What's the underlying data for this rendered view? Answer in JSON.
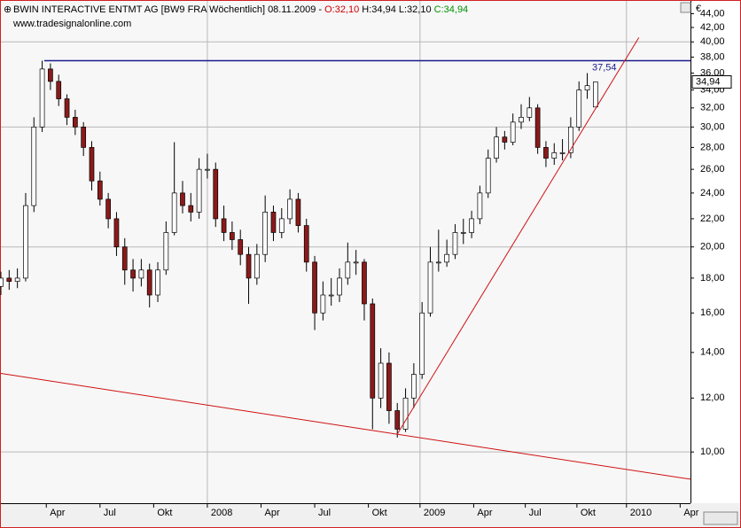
{
  "chart_data": {
    "type": "candlestick",
    "title_parts": [
      {
        "text": "BWIN INTERACTIVE ENTMT AG [BW9 FRA  Wöchentlich] 08.11.2009 - ",
        "color": "#000000"
      },
      {
        "text": "O:32,10",
        "color": "#d00000"
      },
      {
        "text": " H:34,94",
        "color": "#000000"
      },
      {
        "text": " L:32,10",
        "color": "#000000"
      },
      {
        "text": " C:34,94",
        "color": "#009000"
      }
    ],
    "subtitle": "www.tradesignalonline.com",
    "currency": "€",
    "x": [
      0,
      2,
      4,
      6,
      8,
      10,
      12,
      14,
      16,
      18,
      20,
      22,
      24,
      26,
      28,
      30,
      32,
      34,
      36,
      38,
      40,
      42,
      44,
      46,
      48,
      50,
      52,
      54,
      56,
      58,
      60,
      62,
      64,
      66,
      68,
      70,
      72,
      74,
      76,
      78,
      80,
      82,
      84,
      86,
      88,
      90,
      92,
      94,
      96,
      98,
      100,
      102,
      104,
      106,
      108,
      110,
      112,
      114,
      116,
      118,
      120,
      122,
      124,
      126,
      128,
      130,
      132,
      134,
      136,
      138,
      140,
      142,
      144
    ],
    "open": [
      17.5,
      18,
      17.8,
      18,
      23,
      30,
      36.5,
      35,
      33,
      31,
      30,
      28,
      25,
      23.5,
      22,
      20,
      18.5,
      18,
      18.5,
      17,
      18.5,
      21,
      24,
      23,
      22.5,
      26,
      26,
      22,
      21,
      20.5,
      19.5,
      18,
      19.5,
      22.5,
      21,
      22,
      23.5,
      21.5,
      19,
      16,
      17,
      17,
      18,
      19,
      19,
      16.5,
      12,
      13.5,
      11.5,
      10.8,
      12,
      13,
      16,
      19,
      19,
      19.5,
      21,
      21,
      22,
      24,
      27,
      29,
      28.5,
      30.5,
      31,
      32,
      28,
      27,
      27.5,
      27.5,
      30,
      34,
      32.1
    ],
    "high": [
      18.4,
      18.5,
      18.6,
      24,
      31,
      37.54,
      37.2,
      35.8,
      33.5,
      31.8,
      30.5,
      28.6,
      25.8,
      24,
      22.5,
      20.6,
      19.2,
      19.2,
      18.9,
      19,
      21.8,
      28.5,
      25,
      24,
      27,
      27.4,
      26.6,
      23,
      21.8,
      21.2,
      20,
      20.2,
      23.8,
      23,
      22.8,
      24.3,
      24,
      22,
      19.4,
      17.8,
      18,
      18.6,
      20.3,
      19.8,
      19.2,
      16.8,
      14.2,
      14,
      11.8,
      12.4,
      13.5,
      16.6,
      20,
      21.2,
      20.5,
      21.6,
      22,
      22.6,
      24.6,
      27.8,
      30,
      29.6,
      31.4,
      32.4,
      33.2,
      32.4,
      28.6,
      28.4,
      28.8,
      31,
      35,
      36,
      34.94
    ],
    "low": [
      17,
      17.3,
      17.4,
      17.8,
      22.5,
      29.5,
      34,
      32.2,
      30.2,
      29.2,
      27.2,
      24.2,
      23,
      21.3,
      19.4,
      17.6,
      17.2,
      17.5,
      16.3,
      16.6,
      18.2,
      20.8,
      22.4,
      21.8,
      22,
      25.2,
      21.4,
      20.4,
      19.8,
      18.8,
      16.5,
      17.6,
      19,
      20.4,
      20.6,
      21.6,
      21,
      18.4,
      15.1,
      15.6,
      16.4,
      16.6,
      17.6,
      18.2,
      15.6,
      10.8,
      11.6,
      11,
      10.5,
      10.7,
      11.6,
      12.8,
      15.8,
      18.4,
      18.7,
      19.2,
      20.2,
      20.6,
      21.6,
      23.6,
      26.6,
      27.8,
      28.2,
      29.8,
      30.6,
      27.4,
      26.2,
      26.4,
      26.8,
      27,
      29.6,
      33,
      32.1
    ],
    "close": [
      18,
      17.8,
      18,
      23,
      30,
      36.5,
      35,
      33,
      31,
      30,
      28,
      25,
      23.5,
      22,
      20,
      18.5,
      18,
      18.5,
      17,
      18.5,
      21,
      24,
      23,
      22.5,
      26,
      26,
      22,
      21,
      20.5,
      19.5,
      18,
      19.5,
      22.5,
      21,
      22,
      23.5,
      21.5,
      19,
      16,
      17,
      17,
      18,
      19,
      19,
      16.5,
      12,
      13.5,
      11.5,
      10.8,
      12,
      13,
      16,
      19,
      19,
      19.5,
      21,
      21,
      22,
      24,
      27,
      29,
      28.5,
      30.5,
      31,
      32,
      28,
      27,
      27.5,
      27.5,
      30,
      34,
      34.5,
      34.94
    ],
    "up_color": "#ffffff",
    "down_color": "#8b1a1a",
    "last_label": "34,94",
    "level": {
      "value": 37.54,
      "label": "37,54",
      "x_start": 10.5,
      "color": "#1a1a8c"
    },
    "trendlines": [
      {
        "color": "#d01010",
        "x": [
          0,
          167
        ],
        "y": [
          13.04,
          9.12
        ]
      },
      {
        "color": "#d01010",
        "x": [
          95.9,
          154.5
        ],
        "y": [
          10.6,
          40.6
        ]
      }
    ],
    "xlim": [
      0,
      167
    ],
    "xticks": [
      {
        "value": 11,
        "label": "Apr"
      },
      {
        "value": 24,
        "label": "Jul"
      },
      {
        "value": 37,
        "label": "Okt"
      },
      {
        "value": 50,
        "label": "2008"
      },
      {
        "value": 63,
        "label": "Apr"
      },
      {
        "value": 76,
        "label": "Jul"
      },
      {
        "value": 89,
        "label": "Okt"
      },
      {
        "value": 101.5,
        "label": "2009"
      },
      {
        "value": 114.5,
        "label": "Apr"
      },
      {
        "value": 127,
        "label": "Jul"
      },
      {
        "value": 139.5,
        "label": "Okt"
      },
      {
        "value": 151.5,
        "label": "2010"
      },
      {
        "value": 164.5,
        "label": "Apr"
      }
    ],
    "ylim": [
      8.41,
      45.95
    ],
    "log_y": true,
    "yticks": [
      {
        "value": 10,
        "label": "10,00"
      },
      {
        "value": 12,
        "label": "12,00"
      },
      {
        "value": 14,
        "label": "14,00"
      },
      {
        "value": 16,
        "label": "16,00"
      },
      {
        "value": 18,
        "label": "18,00"
      },
      {
        "value": 20,
        "label": "20,00"
      },
      {
        "value": 22,
        "label": "22,00"
      },
      {
        "value": 24,
        "label": "24,00"
      },
      {
        "value": 26,
        "label": "26,00"
      },
      {
        "value": 28,
        "label": "28,00"
      },
      {
        "value": 30,
        "label": "30,00"
      },
      {
        "value": 32,
        "label": "32,00"
      },
      {
        "value": 34,
        "label": "34,00"
      },
      {
        "value": 36,
        "label": "36,00"
      },
      {
        "value": 38,
        "label": "38,00"
      },
      {
        "value": 40,
        "label": "40,00"
      },
      {
        "value": 42,
        "label": "42,00"
      },
      {
        "value": 44,
        "label": "44,00"
      }
    ],
    "ygrid_every": 10,
    "xgrid_on_years": true
  }
}
